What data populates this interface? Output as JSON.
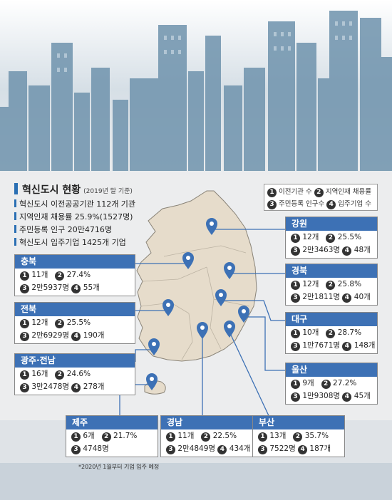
{
  "title": {
    "main": "혁신도시 현황",
    "sub": "(2019년 말 기준)"
  },
  "stats": [
    "혁신도시 이전공공기관 112개 기관",
    "지역인재 채용률 25.9%(1527명)",
    "주민등록 인구 20만4716명",
    "혁신도시 입주기업  1425개 기업"
  ],
  "legend": {
    "n1": "1",
    "l1": "이전기관 수",
    "n2": "2",
    "l2": "지역인재 채용률",
    "n3": "3",
    "l3": "주민등록 인구수",
    "n4": "4",
    "l4": "입주기업 수"
  },
  "regions": [
    {
      "name": "강원",
      "v1": "12개",
      "v2": "25.5%",
      "v3": "2만3463명",
      "v4": "48개"
    },
    {
      "name": "충북",
      "v1": "11개",
      "v2": "27.4%",
      "v3": "2만5937명",
      "v4": "55개"
    },
    {
      "name": "경북",
      "v1": "12개",
      "v2": "25.8%",
      "v3": "2만1811명",
      "v4": "40개"
    },
    {
      "name": "전북",
      "v1": "12개",
      "v2": "25.5%",
      "v3": "2만6929명",
      "v4": "190개"
    },
    {
      "name": "대구",
      "v1": "10개",
      "v2": "28.7%",
      "v3": "1만7671명",
      "v4": "148개"
    },
    {
      "name": "광주·전남",
      "v1": "16개",
      "v2": "24.6%",
      "v3": "3만2478명",
      "v4": "278개"
    },
    {
      "name": "울산",
      "v1": "9개",
      "v2": "27.2%",
      "v3": "1만9308명",
      "v4": "45개"
    },
    {
      "name": "제주",
      "v1": "6개",
      "v2": "21.7%",
      "v3": "4748명",
      "v4": ""
    },
    {
      "name": "경남",
      "v1": "11개",
      "v2": "22.5%",
      "v3": "2만4849명",
      "v4": "434개"
    },
    {
      "name": "부산",
      "v1": "13개",
      "v2": "35.7%",
      "v3": "7522명",
      "v4": "187개"
    }
  ],
  "note": "*2020년 1월부터 기업 입주 예정",
  "colors": {
    "accent": "#3d71b5",
    "land": "#e6dccb",
    "sky": "#7b9cb3"
  }
}
